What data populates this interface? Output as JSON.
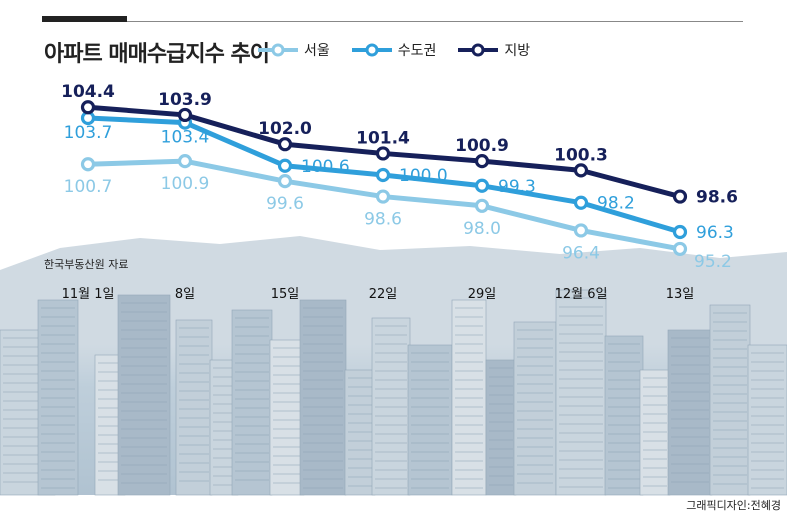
{
  "title": "아파트 매매수급지수 추이",
  "source": "한국부동산원 자료",
  "credit": "그래픽디자인:전혜경",
  "colors": {
    "seoul": "#8cc9e6",
    "metro": "#2f9fdb",
    "local": "#16205a",
    "sky": "#9fc0da",
    "building": "#bccbd6"
  },
  "chart_data": {
    "type": "line",
    "title": "아파트 매매수급지수 추이",
    "categories": [
      "11월 1일",
      "8일",
      "15일",
      "22일",
      "29일",
      "12월 6일",
      "13일"
    ],
    "series": [
      {
        "name": "서울",
        "values": [
          100.7,
          100.9,
          99.6,
          98.6,
          98.0,
          96.4,
          95.2
        ]
      },
      {
        "name": "수도권",
        "values": [
          103.7,
          103.4,
          100.6,
          100.0,
          99.3,
          98.2,
          96.3
        ]
      },
      {
        "name": "지방",
        "values": [
          104.4,
          103.9,
          102.0,
          101.4,
          100.9,
          100.3,
          98.6
        ]
      }
    ],
    "legend": "top",
    "grid": false
  }
}
